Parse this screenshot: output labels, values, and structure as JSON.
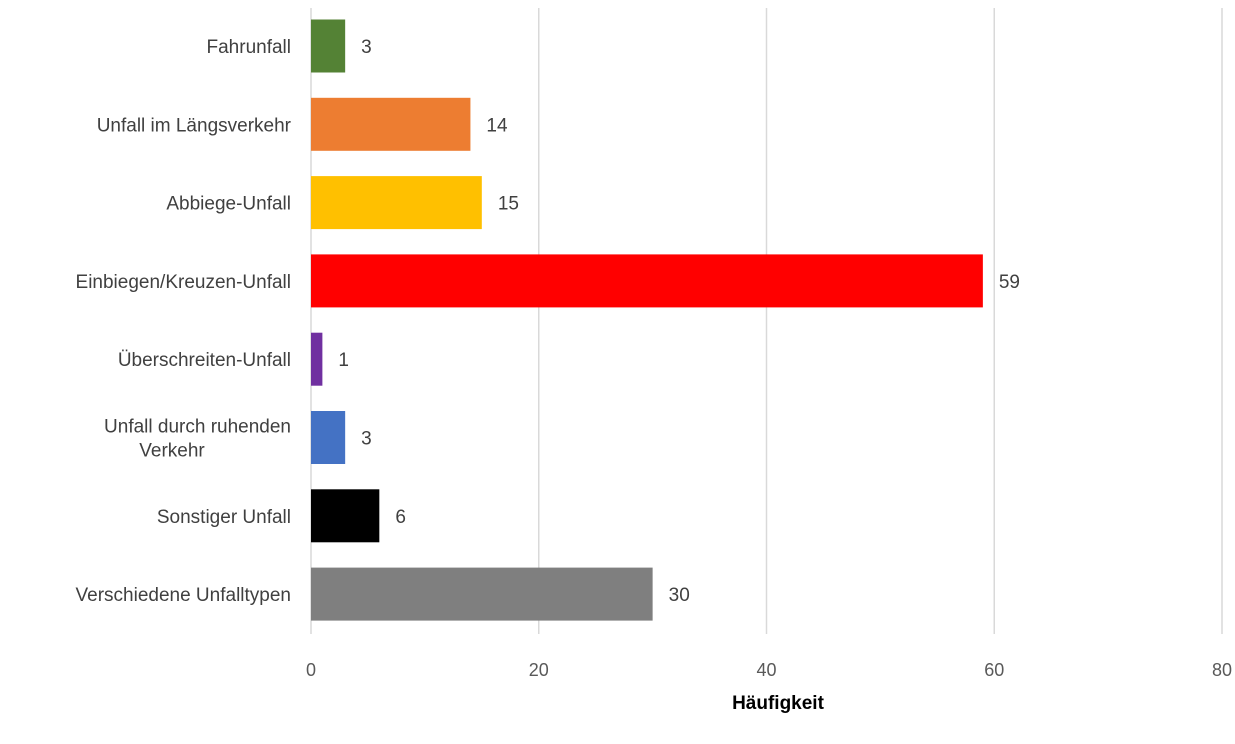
{
  "chart_data": {
    "type": "bar",
    "orientation": "horizontal",
    "title": "",
    "xlabel": "Häufigkeit",
    "ylabel": "",
    "xlim": [
      0,
      80
    ],
    "ticks": [
      0,
      20,
      40,
      60,
      80
    ],
    "tick_labels": [
      "0",
      "20",
      "40",
      "60",
      "80"
    ],
    "grid": "vertical",
    "legend": "none",
    "categories": [
      {
        "label": [
          "Fahrunfall"
        ],
        "value": 3,
        "color": "#548235"
      },
      {
        "label": [
          "Unfall im Längsverkehr"
        ],
        "value": 14,
        "color": "#ed7d31"
      },
      {
        "label": [
          "Abbiege-Unfall"
        ],
        "value": 15,
        "color": "#ffc000"
      },
      {
        "label": [
          "Einbiegen/Kreuzen-Unfall"
        ],
        "value": 59,
        "color": "#ff0000"
      },
      {
        "label": [
          "Überschreiten-Unfall"
        ],
        "value": 1,
        "color": "#7030a0"
      },
      {
        "label": [
          "Unfall durch ruhenden",
          "Verkehr"
        ],
        "value": 3,
        "color": "#4472c4"
      },
      {
        "label": [
          "Sonstiger Unfall"
        ],
        "value": 6,
        "color": "#000000"
      },
      {
        "label": [
          "Verschiedene Unfalltypen"
        ],
        "value": 30,
        "color": "#7f7f7f"
      }
    ]
  }
}
